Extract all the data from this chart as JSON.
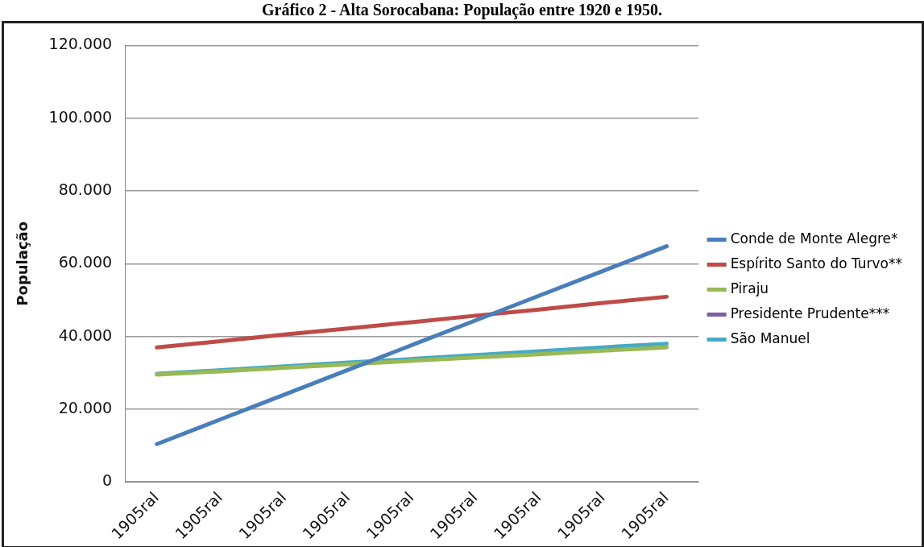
{
  "chart_data": {
    "type": "line",
    "title": "Gráfico 2 - Alta Sorocabana: População entre 1920 e 1950.",
    "ylabel": "População",
    "categories": [
      "1905ral",
      "1905ral",
      "1905ral",
      "1905ral",
      "1905ral",
      "1905ral",
      "1905ral",
      "1905ral",
      "1905ral"
    ],
    "series": [
      {
        "name": "Conde de Monte Alegre*",
        "color": "#4a7ebb",
        "values": [
          10400,
          17200,
          24000,
          30800,
          37600,
          44400,
          51200,
          58000,
          64800
        ]
      },
      {
        "name": "Espírito Santo do Turvo**",
        "color": "#be4b48",
        "values": [
          37000,
          38700,
          40500,
          42200,
          43900,
          45700,
          47400,
          49200,
          50900
        ]
      },
      {
        "name": "Piraju",
        "color": "#98b954",
        "values": [
          29500,
          30400,
          31400,
          32300,
          33300,
          34200,
          35100,
          36100,
          37000
        ]
      },
      {
        "name": "Presidente Prudente***",
        "color": "#7d60a0",
        "values": [
          null,
          null,
          null,
          null,
          null,
          null,
          null,
          null,
          null
        ]
      },
      {
        "name": "São Manuel",
        "color": "#46aac5",
        "values": [
          29700,
          30700,
          31800,
          32800,
          33800,
          34900,
          35900,
          37000,
          38000
        ]
      }
    ],
    "ylim": [
      0,
      120000
    ],
    "yticks": [
      {
        "value": 0,
        "label": "0"
      },
      {
        "value": 20000,
        "label": "20.000"
      },
      {
        "value": 40000,
        "label": "40.000"
      },
      {
        "value": 60000,
        "label": "60.000"
      },
      {
        "value": 80000,
        "label": "80.000"
      },
      {
        "value": 100000,
        "label": "100.000"
      },
      {
        "value": 120000,
        "label": "120.000"
      }
    ],
    "grid": "y",
    "legend": "right",
    "marker": "none",
    "line_style": "solid"
  }
}
